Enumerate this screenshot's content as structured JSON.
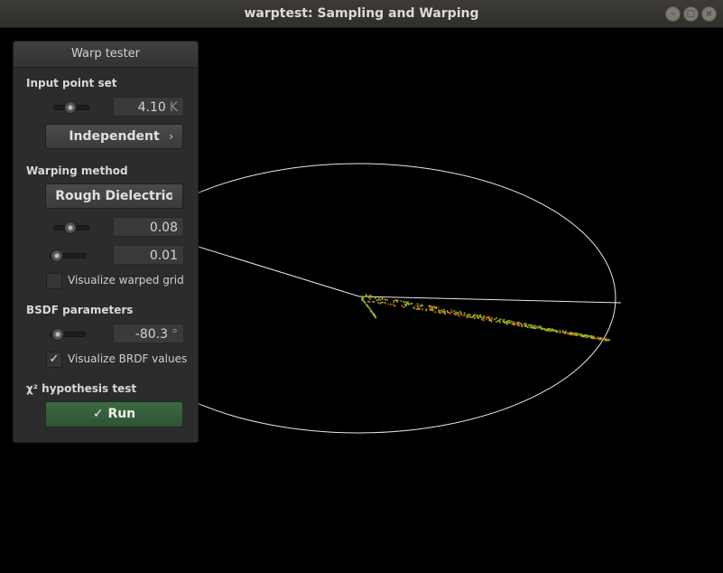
{
  "window": {
    "title": "warptest: Sampling and Warping"
  },
  "panel": {
    "title": "Warp tester",
    "input_point_set": {
      "section_label": "Input point set",
      "count_value": "4.10",
      "count_unit": "K",
      "count_level": 0.45,
      "mode_label": "Independent"
    },
    "warping_method": {
      "section_label": "Warping method",
      "method_label": "Rough Dielectric",
      "param1_value": "0.08",
      "param1_level": 0.45,
      "param2_value": "0.01",
      "param2_level": 0.02,
      "grid_checkbox_label": "Visualize warped grid",
      "grid_checked": false
    },
    "bsdf_parameters": {
      "section_label": "BSDF parameters",
      "angle_value": "-80.3",
      "angle_unit": "°",
      "angle_level": 0.06,
      "brdf_checkbox_label": "Visualize BRDF values",
      "brdf_checked": true
    },
    "hypothesis_test": {
      "section_label": "χ² hypothesis test",
      "run_label": "Run",
      "run_icon": "checkmark-icon"
    }
  },
  "colors": {
    "accent_green": "#3c6a42",
    "point_red": "#d83a1a",
    "point_green": "#7bc21c",
    "point_orange": "#c8a020"
  }
}
